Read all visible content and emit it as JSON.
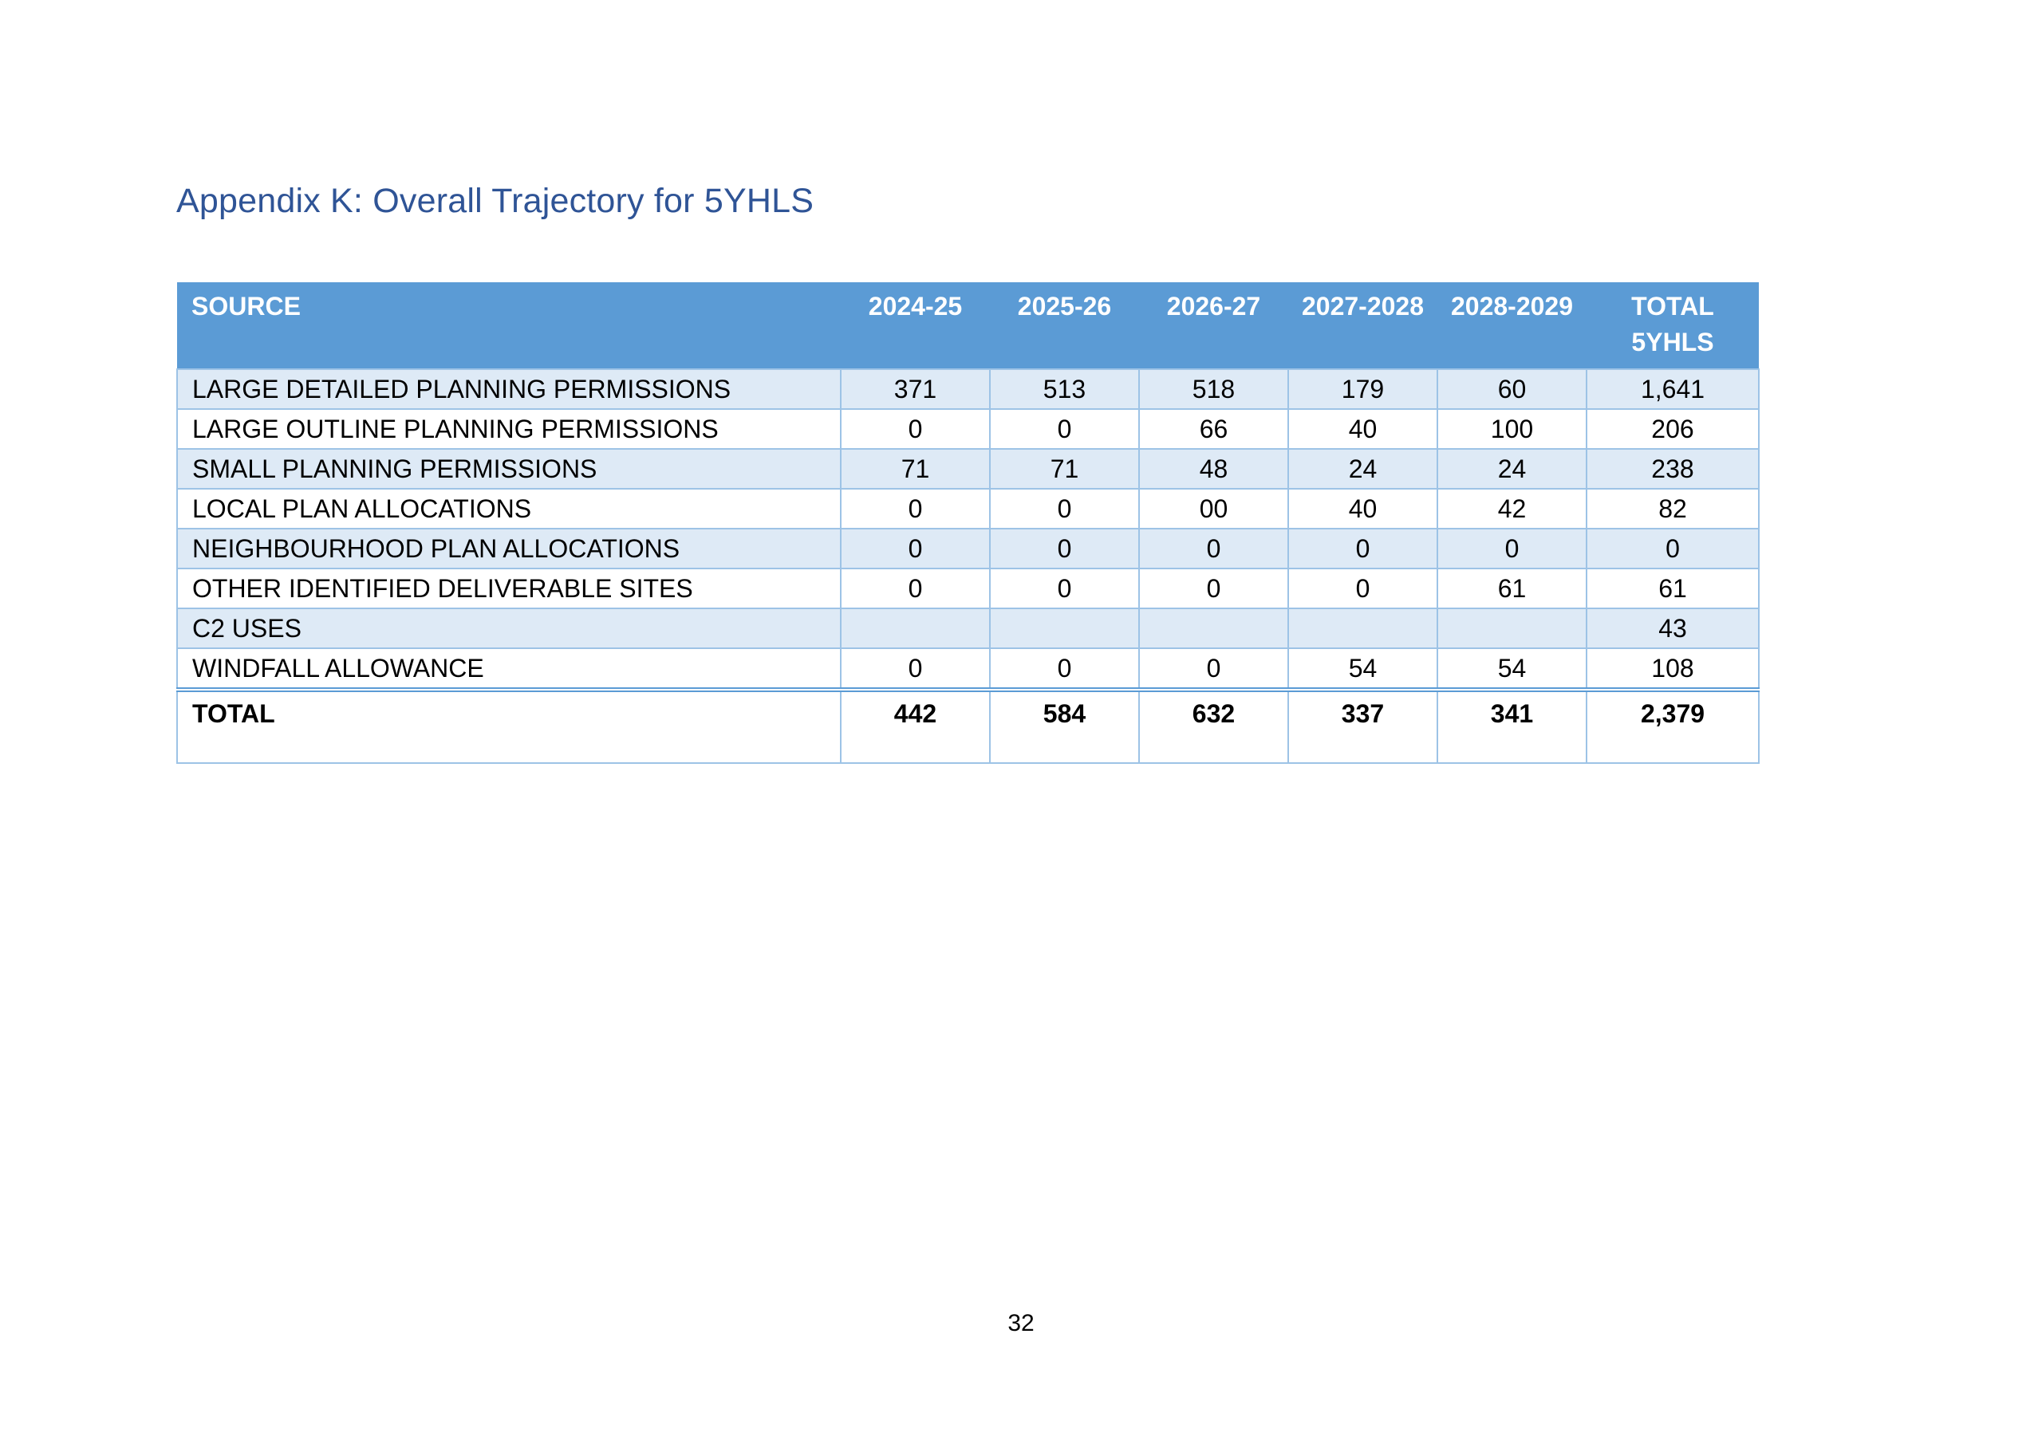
{
  "title": "Appendix K: Overall Trajectory for 5YHLS",
  "table": {
    "headers": {
      "source": "SOURCE",
      "y1": "2024-25",
      "y2": "2025-26",
      "y3": "2026-27",
      "y4": "2027-2028",
      "y5": "2028-2029",
      "total": "TOTAL 5YHLS"
    },
    "rows": [
      {
        "source": "LARGE DETAILED PLANNING PERMISSIONS",
        "y1": "371",
        "y2": "513",
        "y3": "518",
        "y4": "179",
        "y5": "60",
        "total": "1,641"
      },
      {
        "source": "LARGE OUTLINE PLANNING PERMISSIONS",
        "y1": "0",
        "y2": "0",
        "y3": "66",
        "y4": "40",
        "y5": "100",
        "total": "206"
      },
      {
        "source": "SMALL PLANNING PERMISSIONS",
        "y1": "71",
        "y2": "71",
        "y3": "48",
        "y4": "24",
        "y5": "24",
        "total": "238"
      },
      {
        "source": "LOCAL PLAN ALLOCATIONS",
        "y1": "0",
        "y2": "0",
        "y3": "00",
        "y4": "40",
        "y5": "42",
        "total": "82"
      },
      {
        "source": "NEIGHBOURHOOD PLAN ALLOCATIONS",
        "y1": "0",
        "y2": "0",
        "y3": "0",
        "y4": "0",
        "y5": "0",
        "total": "0"
      },
      {
        "source": "OTHER IDENTIFIED DELIVERABLE SITES",
        "y1": "0",
        "y2": "0",
        "y3": "0",
        "y4": "0",
        "y5": "61",
        "total": "61"
      },
      {
        "source": "C2 USES",
        "y1": "",
        "y2": "",
        "y3": "",
        "y4": "",
        "y5": "",
        "total": "43"
      },
      {
        "source": "WINDFALL ALLOWANCE",
        "y1": "0",
        "y2": "0",
        "y3": "0",
        "y4": "54",
        "y5": "54",
        "total": "108"
      }
    ],
    "totals": {
      "source": "TOTAL",
      "y1": "442",
      "y2": "584",
      "y3": "632",
      "y4": "337",
      "y5": "341",
      "total": "2,379"
    }
  },
  "page_number": "32",
  "colors": {
    "title": "#2f5496",
    "header_bg": "#5b9bd5",
    "band_bg": "#deeaf6",
    "border": "#9dc3e6"
  }
}
